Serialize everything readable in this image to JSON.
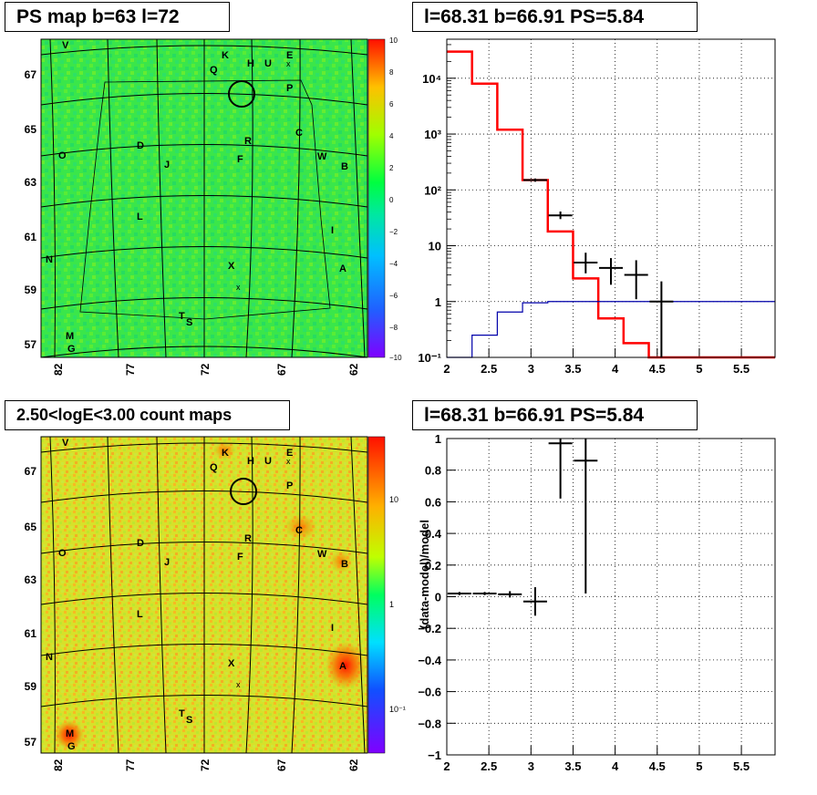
{
  "panels": {
    "ps_map_title": "PS map b=63 l=72",
    "spectrum_title": "l=68.31 b=66.91 PS=5.84",
    "count_map_title": "2.50<logE<3.00 count maps",
    "ratio_title": "l=68.31 b=66.91 PS=5.84"
  },
  "sky_maps": {
    "x_ticks": [
      "82",
      "77",
      "72",
      "67",
      "62"
    ],
    "y_ticks": [
      "67",
      "65",
      "63",
      "61",
      "59",
      "57"
    ],
    "source_labels": [
      "V",
      "K",
      "E",
      "Q",
      "H",
      "U",
      "P",
      "O",
      "D",
      "B",
      "J",
      "F",
      "R",
      "C",
      "W",
      "L",
      "I",
      "N",
      "X",
      "A",
      "T",
      "S",
      "M",
      "G"
    ],
    "source_marker": "circle-marker",
    "cross_marker": "x"
  },
  "ps_map_colorbar": {
    "ticks": [
      "10",
      "8",
      "6",
      "4",
      "2",
      "0",
      "−2",
      "−4",
      "−6",
      "−8",
      "−10"
    ],
    "range": [
      -10,
      10
    ]
  },
  "count_map_colorbar": {
    "ticks": [
      "10",
      "1",
      "10⁻¹"
    ],
    "scale": "log"
  },
  "chart_data": [
    {
      "type": "line",
      "title": "l=68.31 b=66.91 PS=5.84",
      "xlabel": "",
      "ylabel": "",
      "xlim": [
        2,
        5.9
      ],
      "ylim": [
        0.1,
        50000
      ],
      "yscale": "log",
      "x_ticks": [
        "2",
        "2.5",
        "3",
        "3.5",
        "4",
        "4.5",
        "5",
        "5.5"
      ],
      "y_ticks": [
        "10⁻¹",
        "1",
        "10",
        "10²",
        "10³",
        "10⁴"
      ],
      "grid": true,
      "series": [
        {
          "color": "#ff0000",
          "style": "step",
          "bin_edges": [
            2.0,
            2.3,
            2.6,
            2.9,
            3.2,
            3.5,
            3.8,
            4.1,
            4.4,
            4.7,
            5.0,
            5.3,
            5.6,
            5.9
          ],
          "values": [
            30000,
            8000,
            1200,
            150,
            18,
            2.6,
            0.5,
            0.18,
            0.1,
            0.1,
            0.1,
            0.1,
            0.1
          ]
        },
        {
          "color": "#0000aa",
          "style": "step",
          "bin_edges": [
            2.0,
            2.3,
            2.6,
            2.9,
            3.2,
            3.5,
            3.8,
            4.1,
            4.4,
            4.7,
            5.0,
            5.3,
            5.6,
            5.9
          ],
          "values": [
            0.05,
            0.25,
            0.65,
            0.95,
            1.0,
            1.0,
            1.0,
            1.0,
            1.0,
            1.0,
            1.0,
            1.0,
            1.0
          ]
        },
        {
          "color": "#000000",
          "style": "points",
          "points": [
            {
              "x": 3.05,
              "y": 150,
              "yerr_low": 140,
              "yerr_high": 160
            },
            {
              "x": 3.35,
              "y": 35,
              "yerr_low": 30,
              "yerr_high": 41
            },
            {
              "x": 3.65,
              "y": 5,
              "yerr_low": 3.2,
              "yerr_high": 7.5
            },
            {
              "x": 3.95,
              "y": 4,
              "yerr_low": 2,
              "yerr_high": 6
            },
            {
              "x": 4.25,
              "y": 3,
              "yerr_low": 1.1,
              "yerr_high": 5.5
            },
            {
              "x": 4.55,
              "y": 1,
              "yerr_low": 0.1,
              "yerr_high": 2.3
            }
          ]
        }
      ]
    },
    {
      "type": "scatter",
      "title": "l=68.31 b=66.91 PS=5.84",
      "xlabel": "",
      "ylabel": "(data-model)/model",
      "xlim": [
        2,
        5.9
      ],
      "ylim": [
        -1,
        1
      ],
      "x_ticks": [
        "2",
        "2.5",
        "3",
        "3.5",
        "4",
        "4.5",
        "5",
        "5.5"
      ],
      "y_ticks": [
        "1",
        "0.8",
        "0.6",
        "0.4",
        "0.2",
        "0",
        "−0.2",
        "−0.4",
        "−0.6",
        "−0.8",
        "−1"
      ],
      "grid": true,
      "series": [
        {
          "color": "#000000",
          "points": [
            {
              "x": 2.15,
              "y": 0.02,
              "yerr": 0.01
            },
            {
              "x": 2.45,
              "y": 0.02,
              "yerr": 0.01
            },
            {
              "x": 2.75,
              "y": 0.015,
              "yerr": 0.02
            },
            {
              "x": 3.05,
              "y": -0.03,
              "yerr": 0.09
            },
            {
              "x": 3.35,
              "y": 0.97,
              "yerr": 0.35
            },
            {
              "x": 3.65,
              "y": 0.86,
              "yerr": 0.84
            }
          ]
        }
      ]
    }
  ]
}
